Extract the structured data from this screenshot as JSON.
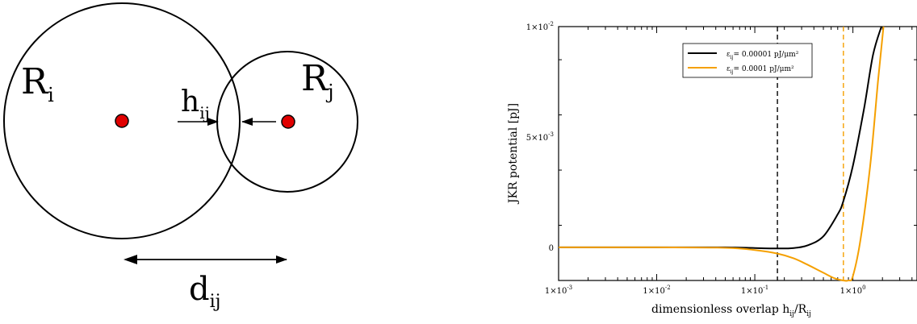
{
  "diagram": {
    "label_ri_main": "R",
    "label_ri_sub": "i",
    "label_rj_main": "R",
    "label_rj_sub": "j",
    "label_h_main": "h",
    "label_h_sub": "ij",
    "label_d_main": "d",
    "label_d_sub": "ij",
    "center_color": "#e00000"
  },
  "chart": {
    "ylabel": "JKR potential [pJ]",
    "xlabel_main": "dimensionless overlap h",
    "xlabel_sub1": "ij",
    "xlabel_mid": "/R",
    "xlabel_sub2": "ij",
    "ytick_labels": [
      {
        "base": "0",
        "exp": ""
      },
      {
        "base": "5×10",
        "exp": "-3"
      },
      {
        "base": "1×10",
        "exp": "-2"
      }
    ],
    "xtick_labels": [
      {
        "base": "1×10",
        "exp": "-3"
      },
      {
        "base": "1×10",
        "exp": "-2"
      },
      {
        "base": "1×10",
        "exp": "-1"
      },
      {
        "base": "1×10",
        "exp": "0"
      }
    ],
    "legend": [
      {
        "pre": "ε",
        "sub": "ij",
        "post": "= 0.00001 pJ/μm²",
        "color": "#000000"
      },
      {
        "pre": "ε",
        "sub": "ij",
        "post": "= 0.0001 pJ/μm²",
        "color": "#f5a000"
      }
    ]
  },
  "chart_data": {
    "type": "line",
    "x_scale": "log",
    "xlim": [
      0.001,
      4.5
    ],
    "ylim": [
      -0.0015,
      0.01
    ],
    "grid": false,
    "legend_position": "top-center",
    "yticks": [
      0,
      0.005,
      0.01
    ],
    "xticks": [
      0.001,
      0.01,
      0.1,
      1
    ],
    "series": [
      {
        "name": "ε_ij = 0.00001 pJ/μm²",
        "color": "#000000",
        "x": [
          0.001,
          0.01,
          0.05,
          0.1,
          0.17,
          0.25,
          0.35,
          0.5,
          0.7,
          0.8,
          1.0,
          1.3,
          1.6,
          1.95
        ],
        "y": [
          0,
          0,
          0,
          -3e-05,
          -5e-05,
          -3e-05,
          0.0001,
          0.0005,
          0.0015,
          0.0021,
          0.0037,
          0.0063,
          0.0087,
          0.01
        ],
        "reference_x": 0.17
      },
      {
        "name": "ε_ij = 0.0001 pJ/μm²",
        "color": "#f5a000",
        "x": [
          0.001,
          0.01,
          0.05,
          0.1,
          0.17,
          0.25,
          0.35,
          0.5,
          0.65,
          0.8,
          0.9,
          1.0,
          1.2,
          1.5,
          1.8,
          2.05
        ],
        "y": [
          0,
          0,
          -2e-05,
          -0.00012,
          -0.00028,
          -0.0005,
          -0.0008,
          -0.00115,
          -0.0014,
          -0.0015,
          -0.0015,
          -0.0013,
          0.0004,
          0.0037,
          0.0075,
          0.01
        ],
        "reference_x": 0.8
      }
    ]
  }
}
